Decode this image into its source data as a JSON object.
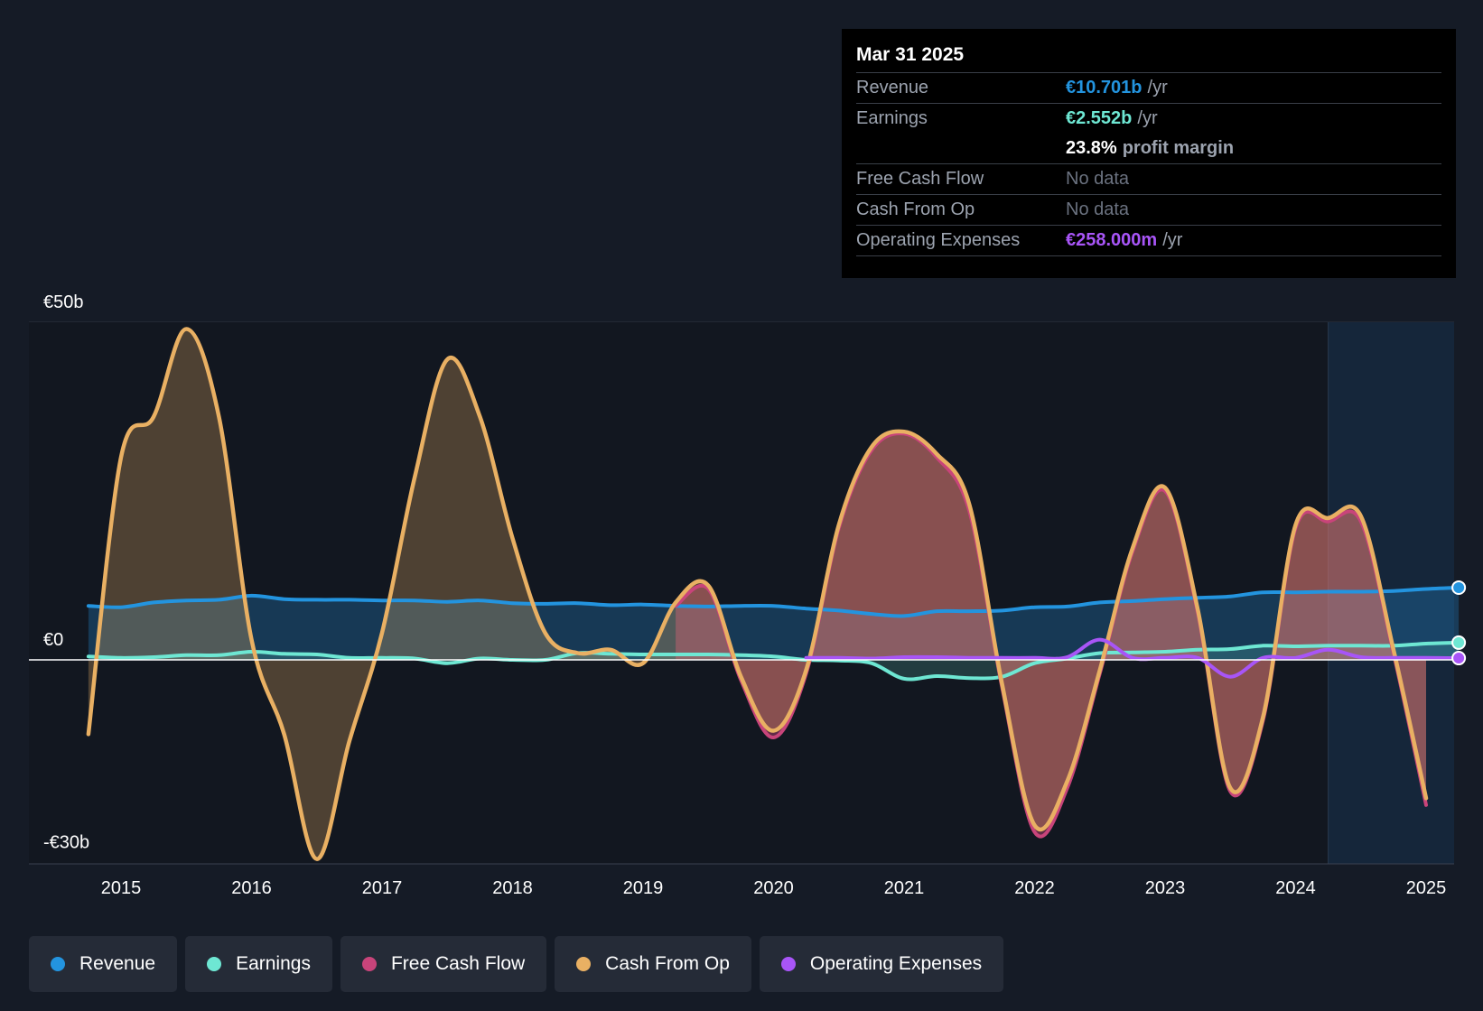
{
  "tooltip": {
    "date": "Mar 31 2025",
    "revenue": {
      "label": "Revenue",
      "value": "€10.701b",
      "unit": "/yr"
    },
    "earnings": {
      "label": "Earnings",
      "value": "€2.552b",
      "unit": "/yr"
    },
    "margin": {
      "value": "23.8%",
      "label": "profit margin"
    },
    "fcf": {
      "label": "Free Cash Flow",
      "value": "No data"
    },
    "cfo": {
      "label": "Cash From Op",
      "value": "No data"
    },
    "opex": {
      "label": "Operating Expenses",
      "value": "€258.000m",
      "unit": "/yr"
    }
  },
  "legend": [
    {
      "label": "Revenue",
      "color": "#2394df"
    },
    {
      "label": "Earnings",
      "color": "#6ee7d3"
    },
    {
      "label": "Free Cash Flow",
      "color": "#c8447a"
    },
    {
      "label": "Cash From Op",
      "color": "#e9b063"
    },
    {
      "label": "Operating Expenses",
      "color": "#a855f7"
    }
  ],
  "chart_data": {
    "type": "line",
    "currency": "EUR",
    "units": "billions",
    "ylim": [
      -30,
      50
    ],
    "y_tick_labels": [
      "€50b",
      "€0",
      "-€30b"
    ],
    "x_tick_labels": [
      "2015",
      "2016",
      "2017",
      "2018",
      "2019",
      "2020",
      "2021",
      "2022",
      "2023",
      "2024",
      "2025"
    ],
    "forecast_region_start": 2024.25,
    "colors": {
      "revenue": "#2394df",
      "earnings": "#6ee7d3",
      "fcf": "#c8447a",
      "cfo": "#e9b063",
      "opex": "#a855f7"
    },
    "series": [
      {
        "name": "Revenue",
        "key": "revenue",
        "points": [
          [
            2014.75,
            8.0
          ],
          [
            2015.0,
            7.8
          ],
          [
            2015.25,
            8.5
          ],
          [
            2015.5,
            8.8
          ],
          [
            2015.75,
            8.9
          ],
          [
            2016.0,
            9.5
          ],
          [
            2016.25,
            9.0
          ],
          [
            2016.5,
            8.9
          ],
          [
            2016.75,
            8.9
          ],
          [
            2017.0,
            8.8
          ],
          [
            2017.25,
            8.8
          ],
          [
            2017.5,
            8.6
          ],
          [
            2017.75,
            8.8
          ],
          [
            2018.0,
            8.4
          ],
          [
            2018.25,
            8.3
          ],
          [
            2018.5,
            8.4
          ],
          [
            2018.75,
            8.1
          ],
          [
            2019.0,
            8.2
          ],
          [
            2019.25,
            8.0
          ],
          [
            2019.5,
            7.9
          ],
          [
            2019.75,
            8.0
          ],
          [
            2020.0,
            8.0
          ],
          [
            2020.25,
            7.6
          ],
          [
            2020.5,
            7.3
          ],
          [
            2020.75,
            6.8
          ],
          [
            2021.0,
            6.5
          ],
          [
            2021.25,
            7.2
          ],
          [
            2021.5,
            7.2
          ],
          [
            2021.75,
            7.3
          ],
          [
            2022.0,
            7.8
          ],
          [
            2022.25,
            7.9
          ],
          [
            2022.5,
            8.5
          ],
          [
            2022.75,
            8.7
          ],
          [
            2023.0,
            9.0
          ],
          [
            2023.25,
            9.2
          ],
          [
            2023.5,
            9.4
          ],
          [
            2023.75,
            10.0
          ],
          [
            2024.0,
            10.0
          ],
          [
            2024.25,
            10.1
          ],
          [
            2024.5,
            10.1
          ],
          [
            2024.75,
            10.2
          ],
          [
            2025.0,
            10.5
          ],
          [
            2025.25,
            10.7
          ]
        ]
      },
      {
        "name": "Earnings",
        "key": "earnings",
        "points": [
          [
            2014.75,
            0.5
          ],
          [
            2015.0,
            0.3
          ],
          [
            2015.25,
            0.4
          ],
          [
            2015.5,
            0.7
          ],
          [
            2015.75,
            0.7
          ],
          [
            2016.0,
            1.2
          ],
          [
            2016.25,
            0.9
          ],
          [
            2016.5,
            0.8
          ],
          [
            2016.75,
            0.3
          ],
          [
            2017.0,
            0.3
          ],
          [
            2017.25,
            0.2
          ],
          [
            2017.5,
            -0.5
          ],
          [
            2017.75,
            0.2
          ],
          [
            2018.0,
            0.0
          ],
          [
            2018.25,
            0.0
          ],
          [
            2018.5,
            1.0
          ],
          [
            2018.75,
            0.9
          ],
          [
            2019.0,
            0.8
          ],
          [
            2019.25,
            0.8
          ],
          [
            2019.5,
            0.8
          ],
          [
            2019.75,
            0.7
          ],
          [
            2020.0,
            0.5
          ],
          [
            2020.25,
            0.0
          ],
          [
            2020.5,
            -0.1
          ],
          [
            2020.75,
            -0.5
          ],
          [
            2021.0,
            -2.8
          ],
          [
            2021.25,
            -2.4
          ],
          [
            2021.5,
            -2.7
          ],
          [
            2021.75,
            -2.5
          ],
          [
            2022.0,
            -0.5
          ],
          [
            2022.25,
            0.2
          ],
          [
            2022.5,
            1.0
          ],
          [
            2022.75,
            1.1
          ],
          [
            2023.0,
            1.2
          ],
          [
            2023.25,
            1.5
          ],
          [
            2023.5,
            1.6
          ],
          [
            2023.75,
            2.1
          ],
          [
            2024.0,
            2.0
          ],
          [
            2024.25,
            2.1
          ],
          [
            2024.5,
            2.1
          ],
          [
            2024.75,
            2.1
          ],
          [
            2025.0,
            2.4
          ],
          [
            2025.25,
            2.55
          ]
        ]
      },
      {
        "name": "Free Cash Flow",
        "key": "fcf",
        "points": [
          [
            2019.25,
            8.0
          ],
          [
            2019.5,
            10.5
          ],
          [
            2019.75,
            -3.0
          ],
          [
            2020.0,
            -11.5
          ],
          [
            2020.25,
            -2.0
          ],
          [
            2020.5,
            19.5
          ],
          [
            2020.75,
            31.0
          ],
          [
            2021.0,
            33.5
          ],
          [
            2021.25,
            30.0
          ],
          [
            2021.5,
            22.0
          ],
          [
            2021.75,
            -4.0
          ],
          [
            2022.0,
            -25.5
          ],
          [
            2022.25,
            -19.0
          ],
          [
            2022.5,
            -2.0
          ],
          [
            2022.75,
            16.0
          ],
          [
            2023.0,
            25.0
          ],
          [
            2023.25,
            7.0
          ],
          [
            2023.5,
            -19.5
          ],
          [
            2023.75,
            -9.0
          ],
          [
            2024.0,
            19.5
          ],
          [
            2024.25,
            20.5
          ],
          [
            2024.5,
            20.5
          ],
          [
            2024.75,
            1.0
          ],
          [
            2025.0,
            -21.5
          ]
        ]
      },
      {
        "name": "Cash From Op",
        "key": "cfo",
        "points": [
          [
            2014.75,
            -11.0
          ],
          [
            2015.0,
            30.0
          ],
          [
            2015.25,
            36.0
          ],
          [
            2015.5,
            49.0
          ],
          [
            2015.75,
            36.0
          ],
          [
            2016.0,
            3.0
          ],
          [
            2016.25,
            -11.0
          ],
          [
            2016.5,
            -29.5
          ],
          [
            2016.75,
            -12.0
          ],
          [
            2017.0,
            4.0
          ],
          [
            2017.25,
            27.0
          ],
          [
            2017.5,
            44.5
          ],
          [
            2017.75,
            36.0
          ],
          [
            2018.0,
            18.0
          ],
          [
            2018.25,
            4.0
          ],
          [
            2018.5,
            1.0
          ],
          [
            2018.75,
            1.5
          ],
          [
            2019.0,
            -0.5
          ],
          [
            2019.25,
            8.5
          ],
          [
            2019.5,
            11.0
          ],
          [
            2019.75,
            -2.5
          ],
          [
            2020.0,
            -10.5
          ],
          [
            2020.25,
            -1.5
          ],
          [
            2020.5,
            20.0
          ],
          [
            2020.75,
            31.5
          ],
          [
            2021.0,
            33.8
          ],
          [
            2021.25,
            30.5
          ],
          [
            2021.5,
            23.0
          ],
          [
            2021.75,
            -3.5
          ],
          [
            2022.0,
            -24.5
          ],
          [
            2022.25,
            -18.0
          ],
          [
            2022.5,
            -1.5
          ],
          [
            2022.75,
            16.5
          ],
          [
            2023.0,
            25.5
          ],
          [
            2023.25,
            7.5
          ],
          [
            2023.5,
            -19.0
          ],
          [
            2023.75,
            -8.5
          ],
          [
            2024.0,
            20.0
          ],
          [
            2024.25,
            21.0
          ],
          [
            2024.5,
            21.3
          ],
          [
            2024.75,
            1.5
          ],
          [
            2025.0,
            -20.5
          ]
        ]
      },
      {
        "name": "Operating Expenses",
        "key": "opex",
        "points": [
          [
            2020.25,
            0.3
          ],
          [
            2020.5,
            0.3
          ],
          [
            2020.75,
            0.2
          ],
          [
            2021.0,
            0.4
          ],
          [
            2021.25,
            0.4
          ],
          [
            2021.5,
            0.3
          ],
          [
            2021.75,
            0.3
          ],
          [
            2022.0,
            0.3
          ],
          [
            2022.25,
            0.4
          ],
          [
            2022.5,
            3.0
          ],
          [
            2022.75,
            0.3
          ],
          [
            2023.0,
            0.3
          ],
          [
            2023.25,
            0.3
          ],
          [
            2023.5,
            -2.5
          ],
          [
            2023.75,
            0.3
          ],
          [
            2024.0,
            0.3
          ],
          [
            2024.25,
            1.5
          ],
          [
            2024.5,
            0.4
          ],
          [
            2024.75,
            0.3
          ],
          [
            2025.0,
            0.3
          ],
          [
            2025.25,
            0.26
          ]
        ]
      }
    ]
  }
}
